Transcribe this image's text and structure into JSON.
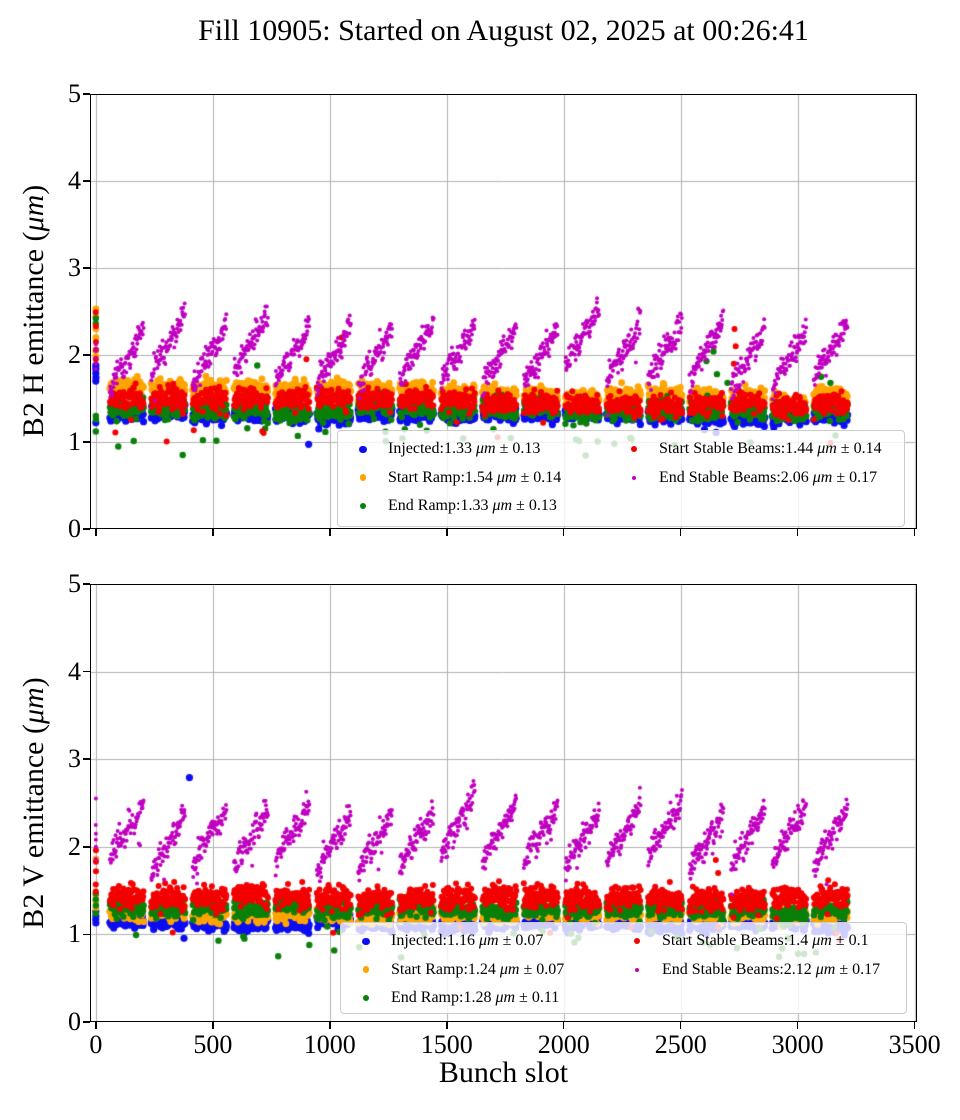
{
  "title": "Fill 10905: Started on August 02, 2025 at 00:26:41",
  "xlabel": "Bunch slot",
  "x_ticks": [
    0,
    500,
    1000,
    1500,
    2000,
    2500,
    3000,
    3500
  ],
  "y_ticks": [
    0,
    1,
    2,
    3,
    4,
    5
  ],
  "grid_color": "#b0b0b0",
  "spine_color": "#000000",
  "seed": 1337,
  "trains": {
    "count": 18,
    "start": 60,
    "pitch": 177,
    "length": 145,
    "step": 2
  },
  "chart_data": [
    {
      "type": "scatter",
      "axis": "B2 H",
      "ylabel": {
        "pre": "B2 H emittance (",
        "unit": "μm",
        "suf": ")"
      },
      "xlim": [
        -25,
        3510
      ],
      "ylim": [
        0,
        5
      ],
      "series": [
        {
          "name": "Injected",
          "color": "#0d0df2",
          "marker_r": 3.6,
          "stats": {
            "mean": 1.33,
            "std": 0.13
          },
          "base": 1.3,
          "slope": -8e-06,
          "sigma": 0.042,
          "train_sigma": 0.02,
          "arch": 0.02,
          "rise": 0,
          "subsaw": 0,
          "low_tail_p": 0.003,
          "low_tail": 0.15,
          "x0_values": [
            1.7,
            1.74,
            1.79,
            1.84,
            1.88,
            1.22
          ],
          "outliers": []
        },
        {
          "name": "Start Ramp",
          "color": "#ffa500",
          "marker_r": 3.4,
          "stats": {
            "mean": 1.54,
            "std": 0.14
          },
          "base": 1.62,
          "slope": -4e-05,
          "sigma": 0.048,
          "train_sigma": 0.02,
          "arch": 0.015,
          "rise": 0,
          "subsaw": 0,
          "low_tail_p": 0.002,
          "low_tail": 0.2,
          "x0_values": [
            2.53,
            2.44,
            2.3,
            2.2,
            2.05,
            1.98
          ],
          "outliers": []
        },
        {
          "name": "End Ramp",
          "color": "#0a800a",
          "marker_r": 3.2,
          "stats": {
            "mean": 1.33,
            "std": 0.13
          },
          "base": 1.38,
          "slope": -1.2e-05,
          "sigma": 0.055,
          "train_sigma": 0.02,
          "arch": 0.01,
          "rise": 0,
          "subsaw": 0,
          "low_tail_p": 0.03,
          "low_tail": 0.32,
          "x0_values": [
            2.42,
            2.36,
            1.3,
            1.26,
            1.12
          ],
          "outliers": [
            [
              2610,
              1.93
            ],
            [
              2640,
              2.04
            ],
            [
              2655,
              1.78
            ],
            [
              2700,
              1.68
            ],
            [
              690,
              1.88
            ],
            [
              3100,
              1.75
            ],
            [
              3140,
              1.68
            ]
          ]
        },
        {
          "name": "Start Stable Beams",
          "color": "#f40000",
          "marker_r": 3.0,
          "stats": {
            "mean": 1.44,
            "std": 0.14
          },
          "base": 1.5,
          "slope": -3.2e-05,
          "sigma": 0.06,
          "train_sigma": 0.02,
          "arch": 0.02,
          "rise": 0,
          "subsaw": 0,
          "low_tail_p": 0.006,
          "low_tail": 0.3,
          "x0_values": [
            2.49,
            2.33,
            2.15,
            2.06,
            1.95
          ],
          "outliers": [
            [
              1050,
              2.2
            ],
            [
              2727,
              1.9
            ],
            [
              2735,
              2.1
            ],
            [
              2730,
              2.3
            ],
            [
              900,
              1.95
            ]
          ]
        },
        {
          "name": "End Stable Beams",
          "color": "#c000c0",
          "marker_r": 2.0,
          "stats": {
            "mean": 2.06,
            "std": 0.17
          },
          "base": 2.05,
          "slope": 0,
          "sigma": 0.07,
          "train_sigma": 0.07,
          "arch": 0,
          "rise": 0.62,
          "subsaw": 0.1,
          "low_tail_p": 0.004,
          "low_tail": 0.25,
          "x0_values": [
            2.12,
            2.05,
            1.97,
            1.9,
            1.84
          ],
          "outliers": []
        }
      ],
      "legend": {
        "items": [
          {
            "pre": "Injected:1.33 ",
            "unit": "μm",
            "suf": " ± 0.13"
          },
          {
            "pre": "Start Ramp:1.54 ",
            "unit": "μm",
            "suf": " ± 0.14"
          },
          {
            "pre": "End Ramp:1.33 ",
            "unit": "μm",
            "suf": " ± 0.13"
          },
          {
            "pre": "Start Stable Beams:1.44 ",
            "unit": "μm",
            "suf": " ± 0.14"
          },
          {
            "pre": "End Stable Beams:2.06 ",
            "unit": "μm",
            "suf": " ± 0.17"
          }
        ]
      }
    },
    {
      "type": "scatter",
      "axis": "B2 V",
      "ylabel": {
        "pre": "B2 V emittance (",
        "unit": "μm",
        "suf": ")"
      },
      "xlim": [
        -25,
        3510
      ],
      "ylim": [
        0,
        5
      ],
      "series": [
        {
          "name": "Injected",
          "color": "#0d0df2",
          "marker_r": 3.6,
          "stats": {
            "mean": 1.16,
            "std": 0.07
          },
          "base": 1.13,
          "slope": -5e-06,
          "sigma": 0.04,
          "train_sigma": 0.018,
          "arch": 0.02,
          "rise": 0,
          "subsaw": 0,
          "low_tail_p": 0.004,
          "low_tail": 0.12,
          "x0_values": [
            1.13,
            1.17,
            1.21,
            1.26
          ],
          "outliers": [
            [
              400,
              2.79
            ]
          ]
        },
        {
          "name": "Start Ramp",
          "color": "#ffa500",
          "marker_r": 3.4,
          "stats": {
            "mean": 1.24,
            "std": 0.07
          },
          "base": 1.24,
          "slope": -1e-05,
          "sigma": 0.045,
          "train_sigma": 0.018,
          "arch": 0.015,
          "rise": 0,
          "subsaw": 0,
          "low_tail_p": 0.004,
          "low_tail": 0.15,
          "x0_values": [
            1.86,
            1.45,
            1.38,
            1.3
          ],
          "outliers": []
        },
        {
          "name": "End Ramp",
          "color": "#0a800a",
          "marker_r": 3.2,
          "stats": {
            "mean": 1.28,
            "std": 0.11
          },
          "base": 1.29,
          "slope": -5e-06,
          "sigma": 0.05,
          "train_sigma": 0.02,
          "arch": 0.01,
          "rise": 0,
          "subsaw": 0,
          "low_tail_p": 0.02,
          "low_tail": 0.35,
          "x0_values": [
            1.47,
            1.4,
            1.33,
            1.24
          ],
          "outliers": []
        },
        {
          "name": "Start Stable Beams",
          "color": "#f40000",
          "marker_r": 3.0,
          "stats": {
            "mean": 1.4,
            "std": 0.1
          },
          "base": 1.42,
          "slope": -6e-06,
          "sigma": 0.065,
          "train_sigma": 0.02,
          "arch": 0.025,
          "rise": 0,
          "subsaw": 0,
          "low_tail_p": 0.008,
          "low_tail": 0.35,
          "x0_values": [
            1.96,
            1.83,
            1.72,
            1.57,
            1.49
          ],
          "outliers": [
            [
              2650,
              1.85
            ],
            [
              2660,
              1.7
            ]
          ]
        },
        {
          "name": "End Stable Beams",
          "color": "#c000c0",
          "marker_r": 2.0,
          "stats": {
            "mean": 2.12,
            "std": 0.17
          },
          "base": 2.12,
          "slope": 0,
          "sigma": 0.07,
          "train_sigma": 0.06,
          "arch": 0,
          "rise": 0.6,
          "subsaw": 0.1,
          "low_tail_p": 0.004,
          "low_tail": 0.25,
          "x0_values": [
            2.55,
            2.25,
            2.15,
            2.08,
            2.0,
            1.86
          ],
          "outliers": []
        }
      ],
      "legend": {
        "items": [
          {
            "pre": "Injected:1.16 ",
            "unit": "μm",
            "suf": " ± 0.07"
          },
          {
            "pre": "Start Ramp:1.24 ",
            "unit": "μm",
            "suf": " ± 0.07"
          },
          {
            "pre": "End Ramp:1.28 ",
            "unit": "μm",
            "suf": " ± 0.11"
          },
          {
            "pre": "Start Stable Beams:1.4 ",
            "unit": "μm",
            "suf": " ± 0.1"
          },
          {
            "pre": "End Stable Beams:2.12 ",
            "unit": "μm",
            "suf": " ± 0.17"
          }
        ]
      }
    }
  ]
}
